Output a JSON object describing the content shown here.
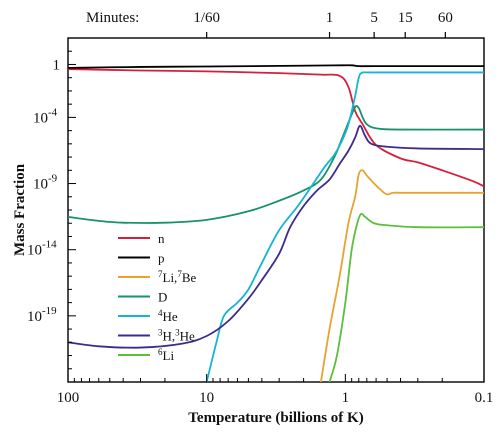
{
  "chart_data": {
    "type": "line",
    "xlabel": "Temperature (billions of K)",
    "ylabel": "Mass Fraction",
    "x_scale": "log",
    "x_reversed": true,
    "xlim": [
      100,
      0.1
    ],
    "y_scale": "log",
    "ylim": [
      1e-24,
      100
    ],
    "grid": false,
    "legend_position": "lower-left",
    "x_ticks": [
      {
        "value": 100,
        "label": "100"
      },
      {
        "value": 10,
        "label": "10"
      },
      {
        "value": 1,
        "label": "1"
      },
      {
        "value": 0.1,
        "label": "0.1"
      }
    ],
    "y_ticks": [
      {
        "value": 1,
        "base": "1",
        "exp": ""
      },
      {
        "value": 0.0001,
        "base": "10",
        "exp": "-4"
      },
      {
        "value": 1e-09,
        "base": "10",
        "exp": "-9"
      },
      {
        "value": 1e-14,
        "base": "10",
        "exp": "-14"
      },
      {
        "value": 1e-19,
        "base": "10",
        "exp": "-19"
      }
    ],
    "top_axis": {
      "title": "Minutes:",
      "ticks": [
        {
          "temperature": 10,
          "label": "1/60"
        },
        {
          "temperature": 1.3,
          "label": "1"
        },
        {
          "temperature": 0.62,
          "label": "5"
        },
        {
          "temperature": 0.37,
          "label": "15"
        },
        {
          "temperature": 0.19,
          "label": "60"
        }
      ]
    },
    "series": [
      {
        "name": "n",
        "sup": "",
        "color": "#d61f3c",
        "points": [
          [
            100,
            0.45
          ],
          [
            30,
            0.35
          ],
          [
            10,
            0.3
          ],
          [
            3,
            0.22
          ],
          [
            1.5,
            0.17
          ],
          [
            1.1,
            0.14
          ],
          [
            0.95,
            0.02
          ],
          [
            0.85,
            0.0003
          ],
          [
            0.75,
            3e-05
          ],
          [
            0.6,
            8e-07
          ],
          [
            0.4,
            8e-08
          ],
          [
            0.3,
            4e-08
          ],
          [
            0.2,
            1e-08
          ],
          [
            0.12,
            1.5e-09
          ],
          [
            0.1,
            6e-10
          ]
        ]
      },
      {
        "name": "p",
        "sup": "",
        "color": "#000000",
        "points": [
          [
            100,
            0.55
          ],
          [
            30,
            0.65
          ],
          [
            10,
            0.7
          ],
          [
            3,
            0.78
          ],
          [
            1.2,
            0.85
          ],
          [
            0.9,
            0.86
          ],
          [
            0.8,
            0.75
          ],
          [
            0.6,
            0.75
          ],
          [
            0.1,
            0.75
          ]
        ]
      },
      {
        "name": "Li,",
        "pre": "7",
        "name2": "Be",
        "pre2": "7",
        "color": "#e8a22f",
        "points": [
          [
            1.5,
            1e-24
          ],
          [
            1.3,
            1e-20
          ],
          [
            1.1,
            1e-16
          ],
          [
            0.95,
            1e-12
          ],
          [
            0.85,
            1e-10
          ],
          [
            0.8,
            5e-09
          ],
          [
            0.75,
            1e-08
          ],
          [
            0.7,
            4e-09
          ],
          [
            0.62,
            1e-09
          ],
          [
            0.55,
            3e-10
          ],
          [
            0.5,
            1.5e-10
          ],
          [
            0.45,
            2e-10
          ],
          [
            0.35,
            2e-10
          ],
          [
            0.1,
            2e-10
          ]
        ]
      },
      {
        "name": "D",
        "sup": "",
        "color": "#17936b",
        "points": [
          [
            100,
            3e-12
          ],
          [
            60,
            1.5e-12
          ],
          [
            40,
            1.1e-12
          ],
          [
            20,
            1.1e-12
          ],
          [
            10,
            1.8e-12
          ],
          [
            5,
            8e-12
          ],
          [
            3,
            5e-11
          ],
          [
            2,
            3e-10
          ],
          [
            1.5,
            2e-09
          ],
          [
            1.2,
            1e-07
          ],
          [
            1.05,
            3e-06
          ],
          [
            0.95,
            4e-05
          ],
          [
            0.85,
            0.0006
          ],
          [
            0.8,
            0.0005
          ],
          [
            0.75,
            0.0001
          ],
          [
            0.7,
            3e-05
          ],
          [
            0.6,
            1.5e-05
          ],
          [
            0.4,
            1.2e-05
          ],
          [
            0.1,
            1.2e-05
          ]
        ]
      },
      {
        "name": "He",
        "pre": "4",
        "color": "#16b3d4",
        "points": [
          [
            10,
            1e-24
          ],
          [
            8.5,
            1e-21
          ],
          [
            7.5,
            1e-19
          ],
          [
            6,
            1e-18
          ],
          [
            5,
            1e-17
          ],
          [
            4,
            1e-15
          ],
          [
            3,
            3e-13
          ],
          [
            2.2,
            2e-11
          ],
          [
            1.7,
            1e-09
          ],
          [
            1.4,
            2e-08
          ],
          [
            1.2,
            1.5e-07
          ],
          [
            1.05,
            2e-06
          ],
          [
            0.95,
            3e-05
          ],
          [
            0.85,
            0.004
          ],
          [
            0.8,
            0.1
          ],
          [
            0.75,
            0.24
          ],
          [
            0.6,
            0.25
          ],
          [
            0.1,
            0.25
          ]
        ]
      },
      {
        "name": "H,",
        "pre": "3",
        "name2": "He",
        "pre2": "3",
        "color": "#3f2a8c",
        "points": [
          [
            100,
            1e-21
          ],
          [
            60,
            5e-22
          ],
          [
            30,
            4e-22
          ],
          [
            15,
            8e-22
          ],
          [
            10,
            3e-21
          ],
          [
            7,
            4e-20
          ],
          [
            5,
            2e-18
          ],
          [
            4,
            5e-17
          ],
          [
            3,
            5e-15
          ],
          [
            2.5,
            5e-13
          ],
          [
            2,
            2e-11
          ],
          [
            1.6,
            3e-10
          ],
          [
            1.3,
            2e-09
          ],
          [
            1.1,
            3e-08
          ],
          [
            0.95,
            3e-07
          ],
          [
            0.85,
            3e-06
          ],
          [
            0.8,
            1.8e-05
          ],
          [
            0.77,
            2e-05
          ],
          [
            0.72,
            4e-06
          ],
          [
            0.65,
            1e-06
          ],
          [
            0.5,
            6e-07
          ],
          [
            0.3,
            4.5e-07
          ],
          [
            0.1,
            4e-07
          ]
        ]
      },
      {
        "name": "Li",
        "pre": "6",
        "color": "#5cbf3b",
        "points": [
          [
            1.3,
            1e-24
          ],
          [
            1.15,
            1e-22
          ],
          [
            1.0,
            1e-18
          ],
          [
            0.9,
            1e-14
          ],
          [
            0.82,
            1e-12
          ],
          [
            0.77,
            5e-12
          ],
          [
            0.72,
            3e-12
          ],
          [
            0.62,
            1e-12
          ],
          [
            0.5,
            7e-13
          ],
          [
            0.3,
            5e-13
          ],
          [
            0.1,
            5e-13
          ]
        ]
      }
    ]
  }
}
